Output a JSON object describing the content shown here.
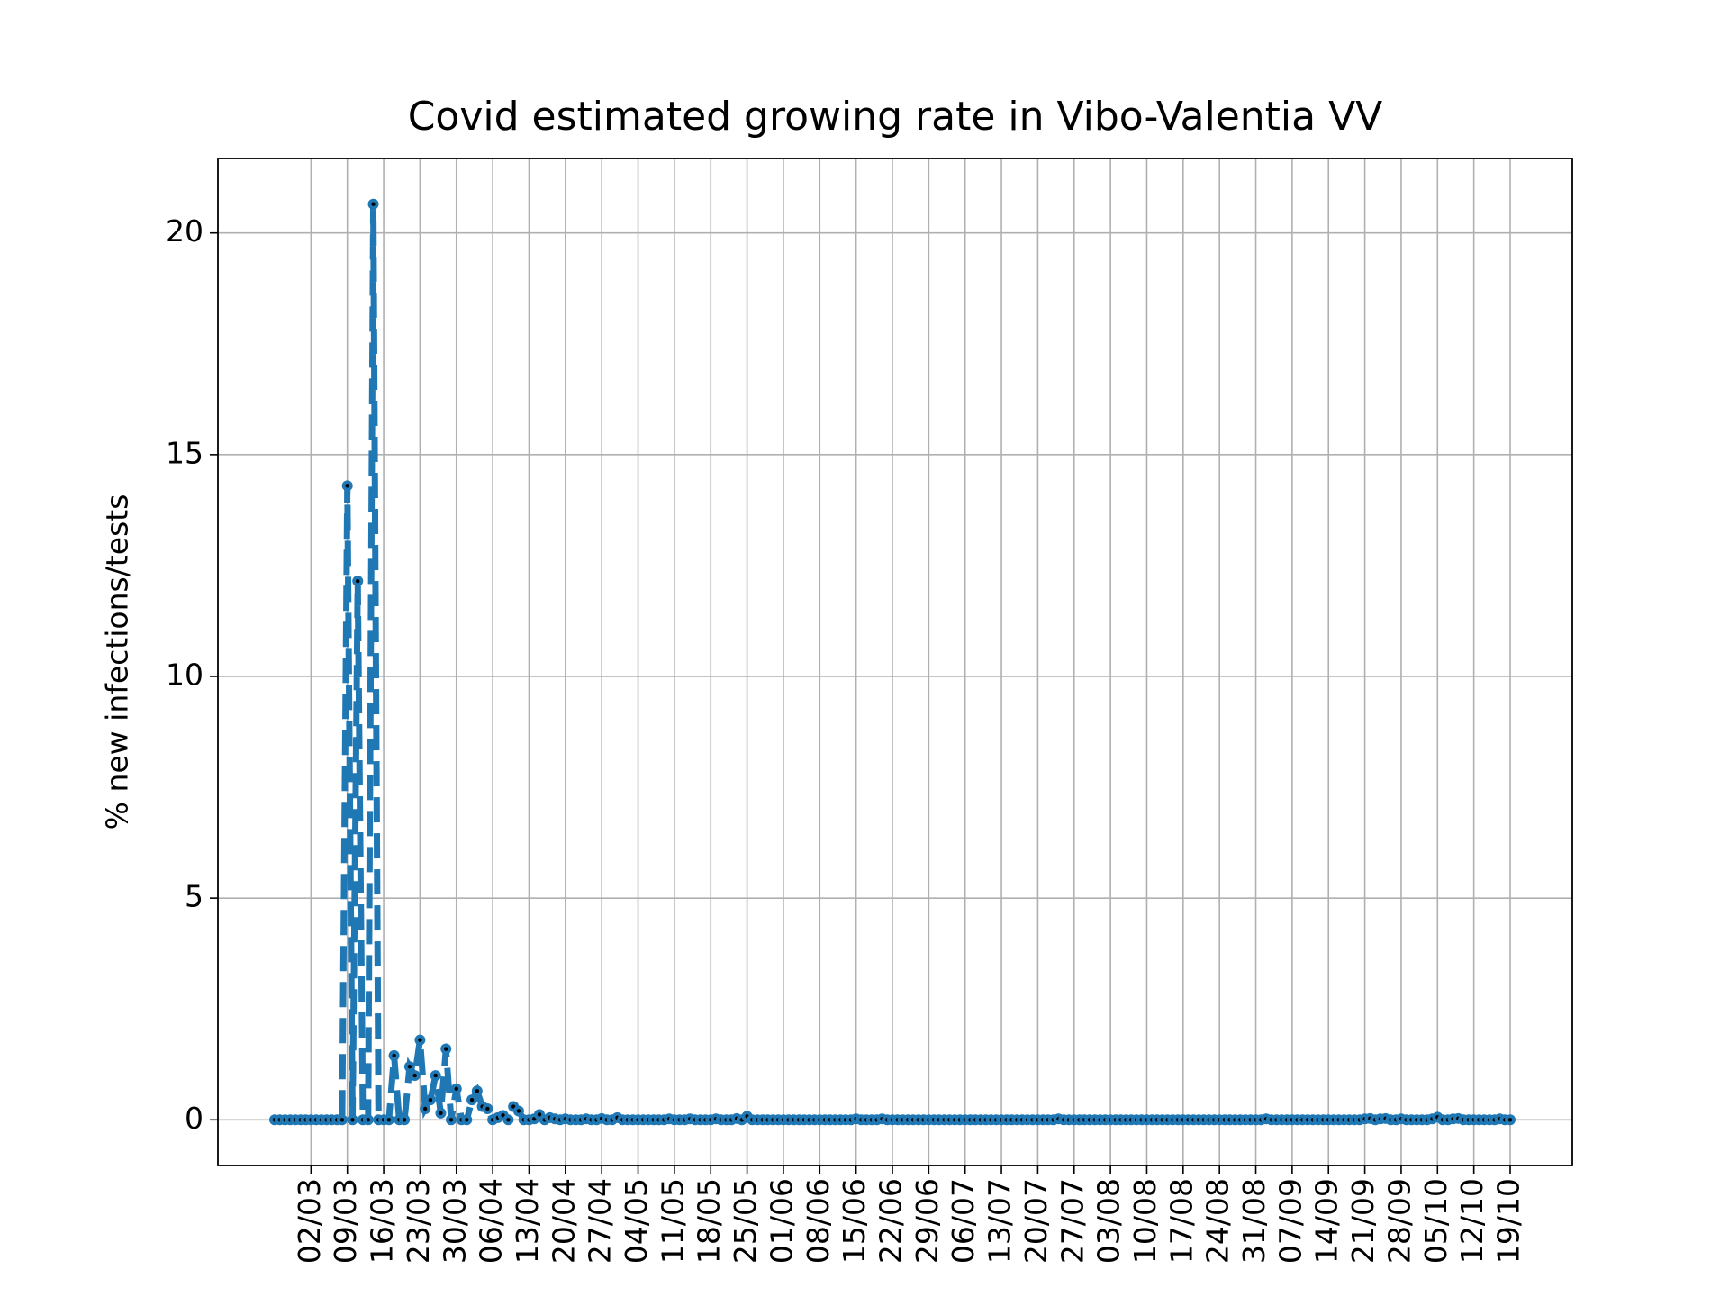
{
  "chart_data": {
    "type": "line",
    "title": "Covid estimated growing rate in Vibo-Valentia VV",
    "y_label": "% new infections/tests",
    "categories": [
      null,
      null,
      null,
      null,
      null,
      null,
      null,
      "02/03",
      null,
      null,
      null,
      null,
      null,
      null,
      "09/03",
      null,
      null,
      null,
      null,
      null,
      null,
      "16/03",
      null,
      null,
      null,
      null,
      null,
      null,
      "23/03",
      null,
      null,
      null,
      null,
      null,
      null,
      "30/03",
      null,
      null,
      null,
      null,
      null,
      null,
      "06/04",
      null,
      null,
      null,
      null,
      null,
      null,
      "13/04",
      null,
      null,
      null,
      null,
      null,
      null,
      "20/04",
      null,
      null,
      null,
      null,
      null,
      null,
      "27/04",
      null,
      null,
      null,
      null,
      null,
      null,
      "04/05",
      null,
      null,
      null,
      null,
      null,
      null,
      "11/05",
      null,
      null,
      null,
      null,
      null,
      null,
      "18/05",
      null,
      null,
      null,
      null,
      null,
      null,
      "25/05",
      null,
      null,
      null,
      null,
      null,
      null,
      "01/06",
      null,
      null,
      null,
      null,
      null,
      null,
      "08/06",
      null,
      null,
      null,
      null,
      null,
      null,
      "15/06",
      null,
      null,
      null,
      null,
      null,
      null,
      "22/06",
      null,
      null,
      null,
      null,
      null,
      null,
      "29/06",
      null,
      null,
      null,
      null,
      null,
      null,
      "06/07",
      null,
      null,
      null,
      null,
      null,
      null,
      "13/07",
      null,
      null,
      null,
      null,
      null,
      null,
      "20/07",
      null,
      null,
      null,
      null,
      null,
      null,
      "27/07",
      null,
      null,
      null,
      null,
      null,
      null,
      "03/08",
      null,
      null,
      null,
      null,
      null,
      null,
      "10/08",
      null,
      null,
      null,
      null,
      null,
      null,
      "17/08",
      null,
      null,
      null,
      null,
      null,
      null,
      "24/08",
      null,
      null,
      null,
      null,
      null,
      null,
      "31/08",
      null,
      null,
      null,
      null,
      null,
      null,
      "07/09",
      null,
      null,
      null,
      null,
      null,
      null,
      "14/09",
      null,
      null,
      null,
      null,
      null,
      null,
      "21/09",
      null,
      null,
      null,
      null,
      null,
      null,
      "28/09",
      null,
      null,
      null,
      null,
      null,
      null,
      "05/10",
      null,
      null,
      null,
      null,
      null,
      null,
      "12/10",
      null,
      null,
      null,
      null,
      null,
      null,
      "19/10"
    ],
    "series": [
      {
        "color": "#1f77b4",
        "values": [
          0,
          0,
          0,
          0,
          0,
          0,
          0,
          0,
          0,
          0,
          0,
          0,
          0,
          0,
          14.3,
          0,
          12.15,
          0,
          0,
          20.65,
          0,
          0,
          0,
          1.45,
          0,
          0,
          1.2,
          1.0,
          1.8,
          0.25,
          0.45,
          1.0,
          0.15,
          1.6,
          0,
          0.7,
          0,
          0,
          0.45,
          0.65,
          0.3,
          0.25,
          0,
          0.05,
          0.1,
          0,
          0.3,
          0.2,
          0,
          0,
          0.02,
          0.12,
          0,
          0.05,
          0.02,
          0,
          0.02,
          0,
          0,
          0,
          0.02,
          0,
          0,
          0.03,
          0,
          0,
          0.05,
          0,
          0,
          0,
          0,
          0,
          0,
          0,
          0,
          0,
          0.02,
          0,
          0,
          0,
          0.02,
          0,
          0,
          0,
          0,
          0.02,
          0,
          0,
          0,
          0.03,
          0,
          0.08,
          0,
          0,
          0,
          0,
          0,
          0,
          0,
          0,
          0,
          0,
          0,
          0,
          0,
          0,
          0,
          0,
          0,
          0,
          0,
          0,
          0.02,
          0,
          0,
          0,
          0,
          0.02,
          0,
          0,
          0,
          0,
          0,
          0,
          0,
          0,
          0,
          0,
          0,
          0,
          0,
          0,
          0,
          0,
          0,
          0,
          0,
          0,
          0,
          0,
          0,
          0,
          0,
          0,
          0,
          0,
          0,
          0,
          0,
          0,
          0,
          0.02,
          0,
          0,
          0,
          0,
          0,
          0,
          0,
          0,
          0,
          0,
          0,
          0,
          0,
          0,
          0,
          0,
          0,
          0,
          0,
          0,
          0,
          0,
          0,
          0,
          0,
          0,
          0,
          0,
          0,
          0,
          0,
          0,
          0,
          0,
          0,
          0,
          0,
          0,
          0,
          0.02,
          0,
          0,
          0,
          0,
          0,
          0,
          0,
          0,
          0,
          0,
          0,
          0,
          0,
          0,
          0,
          0,
          0,
          0,
          0.02,
          0.03,
          0,
          0.02,
          0.03,
          0,
          0,
          0.02,
          0,
          0,
          0,
          0,
          0,
          0.02,
          0.06,
          0,
          0,
          0.02,
          0.03,
          0,
          0,
          0,
          0,
          0,
          0,
          0,
          0.02,
          0,
          0
        ]
      }
    ],
    "ylim": [
      -1.03,
      21.68
    ],
    "yticks": [
      0,
      5,
      10,
      15,
      20
    ],
    "grid": true
  }
}
